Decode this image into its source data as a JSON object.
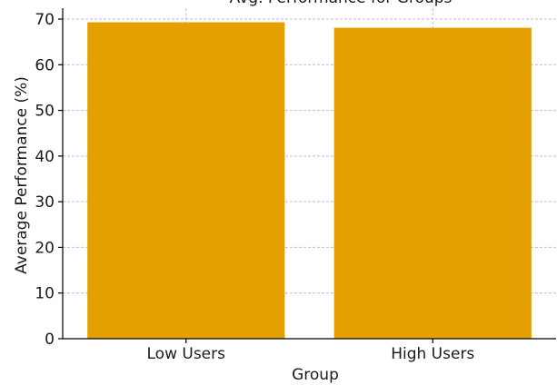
{
  "chart_data": {
    "type": "bar",
    "title": "Avg. Performance for Groups",
    "categories": [
      "Low Users",
      "High Users"
    ],
    "values": [
      69.3,
      68.1
    ],
    "xlabel": "Group",
    "ylabel": "Average Performance (%)",
    "ylim": [
      0,
      70
    ],
    "yticks": [
      0,
      10,
      20,
      30,
      40,
      50,
      60,
      70
    ],
    "grid": true,
    "bar_color": "#e3a000",
    "grid_color": "#c8b4e6",
    "axis_color": "#000000"
  }
}
